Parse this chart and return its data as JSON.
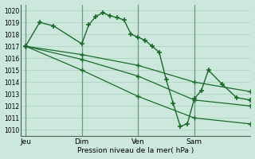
{
  "title": "",
  "xlabel": "Pression niveau de la mer( hPa )",
  "ylabel": "",
  "ylim": [
    1009.5,
    1020.5
  ],
  "yticks": [
    1010,
    1011,
    1012,
    1013,
    1014,
    1015,
    1016,
    1017,
    1018,
    1019,
    1020
  ],
  "bg_color": "#cce8dc",
  "line_color": "#1a6b2a",
  "grid_color": "#aacfbe",
  "vline_color": "#6a9a80",
  "xtick_labels": [
    "Jeu",
    "Dim",
    "Ven",
    "Sam"
  ],
  "xtick_positions": [
    0,
    24,
    48,
    72
  ],
  "vline_positions": [
    0,
    24,
    48,
    72
  ],
  "xlim": [
    -2,
    96
  ],
  "line1": {
    "x": [
      0,
      6,
      12,
      24,
      27,
      30,
      33,
      36,
      39,
      42,
      45,
      48,
      51,
      54,
      57,
      60,
      63,
      66,
      69,
      72,
      75,
      78,
      84,
      90,
      96
    ],
    "y": [
      1017,
      1019.0,
      1018.7,
      1017.2,
      1018.8,
      1019.5,
      1019.8,
      1019.55,
      1019.4,
      1019.2,
      1018.0,
      1017.75,
      1017.5,
      1017.0,
      1016.5,
      1014.2,
      1012.2,
      1010.3,
      1010.5,
      1012.6,
      1013.3,
      1015.0,
      1013.8,
      1012.7,
      1012.5
    ]
  },
  "line2": {
    "x": [
      0,
      24,
      48,
      72,
      96
    ],
    "y": [
      1017,
      1016.3,
      1015.4,
      1014.0,
      1013.2
    ]
  },
  "line3": {
    "x": [
      0,
      24,
      48,
      72,
      96
    ],
    "y": [
      1017,
      1015.9,
      1014.5,
      1012.5,
      1012.0
    ]
  },
  "line4": {
    "x": [
      0,
      24,
      48,
      72,
      96
    ],
    "y": [
      1017,
      1015.0,
      1012.8,
      1011.0,
      1010.5
    ]
  }
}
